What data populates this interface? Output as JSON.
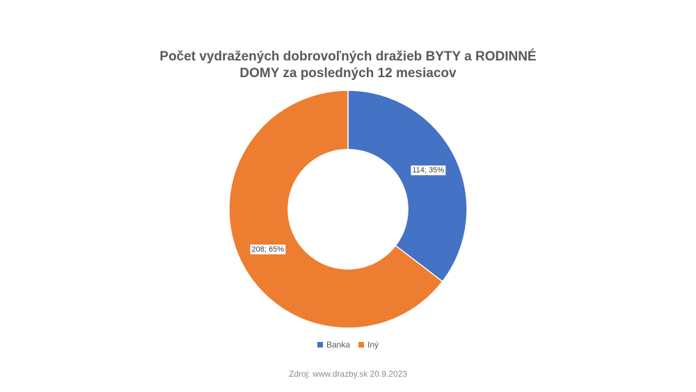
{
  "chart_data": {
    "type": "pie",
    "title_lines": [
      "Počet vydražených dobrovoľných dražieb BYTY a RODINNÉ",
      "DOMY za posledných 12 mesiacov"
    ],
    "categories": [
      "Banka",
      "Iný"
    ],
    "values": [
      114,
      208
    ],
    "percent_labels": [
      "35%",
      "65%"
    ],
    "data_labels": [
      "114; 35%",
      "208; 65%"
    ],
    "colors": [
      "#4472c4",
      "#ed7d31"
    ],
    "legend_position": "bottom",
    "donut": true
  },
  "footer": {
    "source": "Zdroj: www.drazby.sk 20.9.2023"
  }
}
